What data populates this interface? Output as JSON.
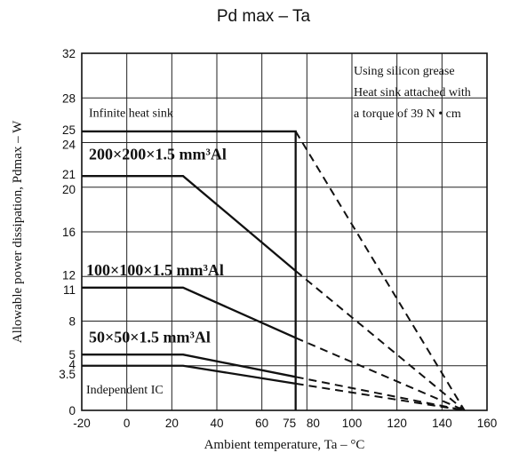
{
  "chart_data": {
    "type": "line",
    "title": "Pd max – Ta",
    "xlabel": "Ambient temperature, Ta – °C",
    "ylabel": "Allowable power dissipation, Pdmax – W",
    "xlim": [
      -20,
      160
    ],
    "ylim": [
      0,
      32
    ],
    "x_ticks": [
      "-20",
      "0",
      "20",
      "40",
      "60",
      "75",
      "80",
      "100",
      "120",
      "140",
      "160"
    ],
    "x_tick_values": [
      -20,
      0,
      20,
      40,
      60,
      75,
      80,
      100,
      120,
      140,
      160
    ],
    "y_ticks": [
      "0",
      "3.5",
      "4",
      "5",
      "8",
      "11",
      "12",
      "16",
      "20",
      "21",
      "24",
      "25",
      "28",
      "32"
    ],
    "y_tick_values": [
      0,
      3.5,
      4,
      5,
      8,
      11,
      12,
      16,
      20,
      21,
      24,
      25,
      28,
      32
    ],
    "grid": true,
    "annotation": [
      "Using silicon grease",
      "Heat sink attached with",
      "a torque of 39 N • cm"
    ],
    "series": [
      {
        "name": "Infinite heat sink",
        "x": [
          -20,
          75,
          75
        ],
        "y": [
          25,
          25,
          0
        ],
        "dashed_x": [
          75,
          150
        ],
        "dashed_y": [
          25,
          0
        ]
      },
      {
        "name": "200×200×1.5 mm³Al",
        "x": [
          -20,
          25,
          75
        ],
        "y": [
          21,
          21,
          12.5
        ],
        "dashed_x": [
          75,
          150
        ],
        "dashed_y": [
          12.5,
          0
        ]
      },
      {
        "name": "100×100×1.5 mm³Al",
        "x": [
          -20,
          25,
          75
        ],
        "y": [
          11,
          11,
          6.5
        ],
        "dashed_x": [
          75,
          150
        ],
        "dashed_y": [
          6.5,
          0
        ]
      },
      {
        "name": "50×50×1.5 mm³Al",
        "x": [
          -20,
          25,
          75
        ],
        "y": [
          5,
          5,
          3
        ],
        "dashed_x": [
          75,
          150
        ],
        "dashed_y": [
          3,
          0
        ]
      },
      {
        "name": "Independent IC",
        "x": [
          -20,
          25,
          75
        ],
        "y": [
          4,
          4,
          2.4
        ],
        "dashed_x": [
          75,
          150
        ],
        "dashed_y": [
          2.4,
          0
        ]
      }
    ]
  }
}
